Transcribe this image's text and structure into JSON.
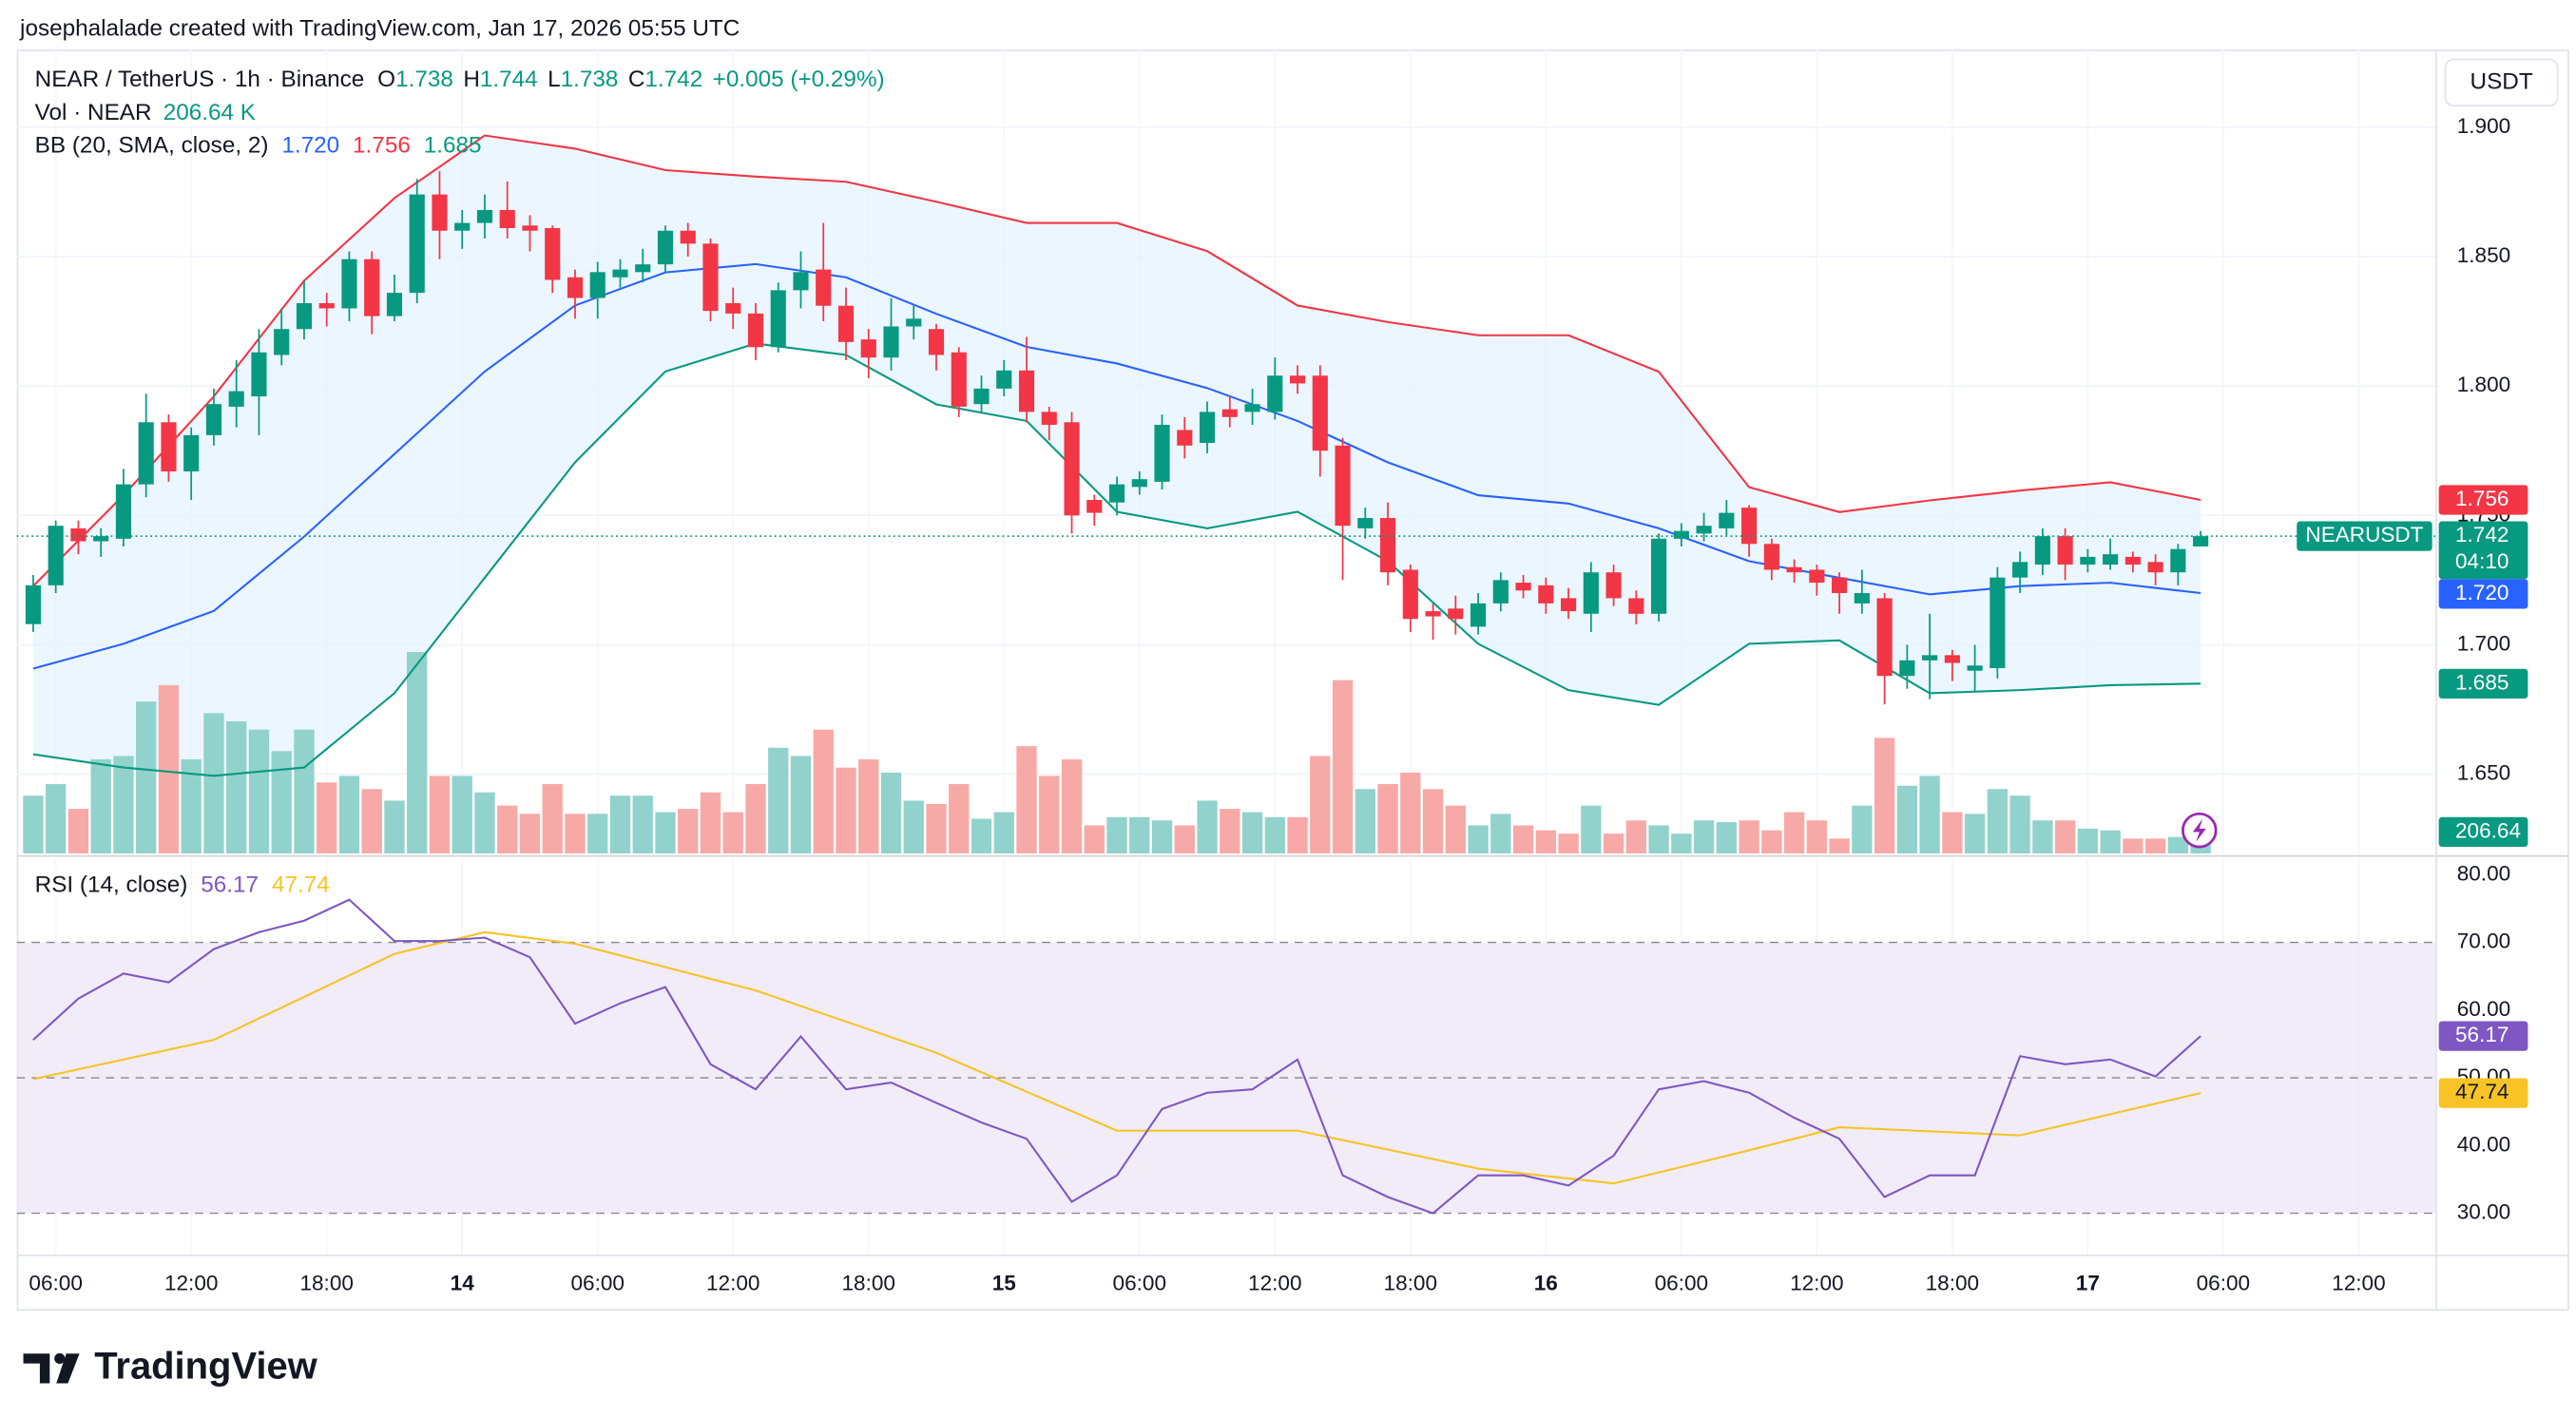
{
  "header": {
    "credit": "josephalalade created with TradingView.com, Jan 17, 2026 05:55 UTC",
    "brand": "TradingView"
  },
  "chart_data": {
    "type": "candlestick",
    "title": "NEAR / TetherUS · 1h · Binance",
    "currency": "USDT",
    "symbol": "NEARUSDT",
    "countdown": "04:10",
    "legend": {
      "o_label": "O",
      "o": "1.738",
      "h_label": "H",
      "h": "1.744",
      "l_label": "L",
      "l": "1.738",
      "c_label": "C",
      "c": "1.742",
      "change": "+0.005 (+0.29%)",
      "volume_title": "Vol · NEAR",
      "volume": "206.64 K",
      "bb_title": "BB (20, SMA, close, 2)",
      "bb_basis": "1.720",
      "bb_upper": "1.756",
      "bb_lower": "1.685",
      "rsi_title": "RSI (14, close)",
      "rsi": "56.17",
      "rsi_ma": "47.74"
    },
    "up_color": "#089981",
    "down_color": "#f23645",
    "up_volume_color": "#92d2cc",
    "down_volume_color": "#f7a9a7",
    "open": [
      1.708,
      1.723,
      1.745,
      1.74,
      1.741,
      1.762,
      1.786,
      1.767,
      1.781,
      1.792,
      1.796,
      1.812,
      1.822,
      1.832,
      1.83,
      1.849,
      1.827,
      1.836,
      1.874,
      1.86,
      1.863,
      1.868,
      1.862,
      1.861,
      1.842,
      1.834,
      1.842,
      1.844,
      1.847,
      1.86,
      1.855,
      1.832,
      1.828,
      1.815,
      1.837,
      1.845,
      1.831,
      1.818,
      1.811,
      1.823,
      1.822,
      1.813,
      1.793,
      1.799,
      1.806,
      1.79,
      1.786,
      1.756,
      1.755,
      1.761,
      1.763,
      1.783,
      1.778,
      1.791,
      1.79,
      1.79,
      1.804,
      1.804,
      1.777,
      1.745,
      1.749,
      1.729,
      1.713,
      1.714,
      1.707,
      1.716,
      1.724,
      1.723,
      1.718,
      1.712,
      1.728,
      1.718,
      1.712,
      1.741,
      1.743,
      1.745,
      1.753,
      1.739,
      1.73,
      1.729,
      1.726,
      1.716,
      1.718,
      1.688,
      1.694,
      1.696,
      1.69,
      1.691,
      1.726,
      1.731,
      1.742,
      1.731,
      1.731,
      1.734,
      1.732,
      1.728,
      1.738
    ],
    "high": [
      1.727,
      1.748,
      1.748,
      1.745,
      1.768,
      1.797,
      1.789,
      1.784,
      1.799,
      1.81,
      1.822,
      1.83,
      1.841,
      1.836,
      1.852,
      1.852,
      1.843,
      1.88,
      1.883,
      1.868,
      1.874,
      1.879,
      1.866,
      1.862,
      1.845,
      1.848,
      1.849,
      1.853,
      1.862,
      1.863,
      1.857,
      1.838,
      1.832,
      1.84,
      1.852,
      1.863,
      1.838,
      1.822,
      1.834,
      1.831,
      1.824,
      1.815,
      1.804,
      1.81,
      1.819,
      1.792,
      1.79,
      1.758,
      1.765,
      1.767,
      1.789,
      1.788,
      1.794,
      1.796,
      1.799,
      1.811,
      1.808,
      1.808,
      1.78,
      1.753,
      1.755,
      1.731,
      1.716,
      1.719,
      1.72,
      1.728,
      1.727,
      1.726,
      1.722,
      1.732,
      1.731,
      1.721,
      1.743,
      1.747,
      1.751,
      1.756,
      1.754,
      1.741,
      1.733,
      1.731,
      1.728,
      1.729,
      1.72,
      1.7,
      1.712,
      1.698,
      1.7,
      1.73,
      1.736,
      1.745,
      1.745,
      1.737,
      1.741,
      1.736,
      1.735,
      1.739,
      1.744
    ],
    "low": [
      1.705,
      1.72,
      1.735,
      1.734,
      1.738,
      1.757,
      1.763,
      1.756,
      1.777,
      1.784,
      1.781,
      1.808,
      1.818,
      1.823,
      1.825,
      1.82,
      1.825,
      1.832,
      1.849,
      1.853,
      1.857,
      1.857,
      1.852,
      1.836,
      1.826,
      1.826,
      1.838,
      1.84,
      1.844,
      1.85,
      1.825,
      1.822,
      1.81,
      1.813,
      1.83,
      1.825,
      1.81,
      1.803,
      1.806,
      1.818,
      1.806,
      1.788,
      1.79,
      1.796,
      1.786,
      1.779,
      1.743,
      1.746,
      1.75,
      1.758,
      1.76,
      1.772,
      1.774,
      1.784,
      1.785,
      1.787,
      1.797,
      1.765,
      1.725,
      1.741,
      1.723,
      1.705,
      1.702,
      1.704,
      1.704,
      1.713,
      1.718,
      1.712,
      1.71,
      1.705,
      1.715,
      1.708,
      1.709,
      1.738,
      1.74,
      1.742,
      1.734,
      1.725,
      1.724,
      1.719,
      1.712,
      1.712,
      1.677,
      1.683,
      1.679,
      1.686,
      1.682,
      1.687,
      1.72,
      1.727,
      1.725,
      1.728,
      1.729,
      1.728,
      1.723,
      1.723,
      1.738
    ],
    "close": [
      1.723,
      1.746,
      1.74,
      1.742,
      1.762,
      1.786,
      1.767,
      1.781,
      1.793,
      1.798,
      1.813,
      1.822,
      1.832,
      1.83,
      1.849,
      1.827,
      1.836,
      1.874,
      1.86,
      1.863,
      1.868,
      1.861,
      1.86,
      1.841,
      1.834,
      1.844,
      1.845,
      1.847,
      1.86,
      1.855,
      1.829,
      1.828,
      1.815,
      1.837,
      1.844,
      1.831,
      1.817,
      1.811,
      1.823,
      1.826,
      1.812,
      1.792,
      1.799,
      1.806,
      1.79,
      1.785,
      1.75,
      1.751,
      1.762,
      1.764,
      1.785,
      1.777,
      1.79,
      1.788,
      1.793,
      1.804,
      1.801,
      1.775,
      1.746,
      1.749,
      1.728,
      1.71,
      1.711,
      1.71,
      1.716,
      1.725,
      1.721,
      1.716,
      1.713,
      1.728,
      1.718,
      1.712,
      1.741,
      1.744,
      1.746,
      1.751,
      1.739,
      1.729,
      1.728,
      1.724,
      1.72,
      1.72,
      1.688,
      1.694,
      1.696,
      1.693,
      1.692,
      1.726,
      1.732,
      1.742,
      1.731,
      1.734,
      1.735,
      1.731,
      1.728,
      1.737,
      1.742
    ],
    "volume": [
      910,
      1092,
      702,
      1482,
      1534,
      2392,
      2652,
      1482,
      2210,
      2080,
      1950,
      1612,
      1950,
      1118,
      1222,
      1014,
      832,
      3172,
      1222,
      1222,
      962,
      754,
      624,
      1092,
      624,
      624,
      910,
      910,
      650,
      702,
      962,
      650,
      1092,
      1664,
      1534,
      1950,
      1352,
      1482,
      1274,
      832,
      780,
      1092,
      546,
      650,
      1690,
      1222,
      1482,
      442,
      572,
      572,
      520,
      442,
      832,
      702,
      650,
      572,
      572,
      1534,
      2730,
      1014,
      1092,
      1274,
      1014,
      754,
      442,
      624,
      442,
      364,
      312,
      754,
      312,
      520,
      442,
      312,
      520,
      494,
      520,
      364,
      650,
      520,
      234,
      754,
      1820,
      1066,
      1222,
      650,
      624,
      1014,
      910,
      520,
      520,
      390,
      364,
      234,
      234,
      260,
      206.64
    ],
    "bb": {
      "x": [
        0,
        4,
        8,
        12,
        16,
        20,
        24,
        28,
        32,
        36,
        40,
        44,
        48,
        52,
        56,
        60,
        64,
        68,
        72,
        76,
        80,
        84,
        88,
        92,
        96
      ],
      "upper": [
        1.7227,
        1.7578,
        1.796,
        1.8407,
        1.8726,
        1.8968,
        1.8917,
        1.8834,
        1.8809,
        1.8789,
        1.8712,
        1.863,
        1.863,
        1.8521,
        1.8311,
        1.8247,
        1.8196,
        1.8196,
        1.8055,
        1.7609,
        1.7513,
        1.7558,
        1.7596,
        1.7628,
        1.756
      ],
      "basis": [
        1.6908,
        1.7004,
        1.7131,
        1.7418,
        1.7737,
        1.8056,
        1.8311,
        1.8439,
        1.8471,
        1.842,
        1.8279,
        1.8151,
        1.8087,
        1.7992,
        1.7865,
        1.7705,
        1.7578,
        1.7546,
        1.745,
        1.7323,
        1.7259,
        1.7195,
        1.7227,
        1.724,
        1.72
      ],
      "lower": [
        1.6577,
        1.6526,
        1.6494,
        1.6526,
        1.6813,
        1.7259,
        1.7705,
        1.8056,
        1.8164,
        1.812,
        1.7929,
        1.7865,
        1.7514,
        1.745,
        1.7514,
        1.7323,
        1.7004,
        1.6825,
        1.6768,
        1.7004,
        1.7017,
        1.6813,
        1.6825,
        1.6844,
        1.685
      ],
      "upper_color": "#f23645",
      "basis_color": "#2962ff",
      "lower_color": "#089981",
      "fill": "#e3f2fd"
    },
    "ylim": [
      1.6194,
      1.93
    ],
    "yticks": [
      {
        "value": 1.65,
        "label": "1.650"
      },
      {
        "value": 1.7,
        "label": "1.700"
      },
      {
        "value": 1.75,
        "label": "1.750"
      },
      {
        "value": 1.8,
        "label": "1.800"
      },
      {
        "value": 1.85,
        "label": "1.850"
      },
      {
        "value": 1.9,
        "label": "1.900"
      }
    ],
    "xlim": [
      -0.73,
      106.4
    ],
    "xticks": [
      {
        "value": 1,
        "label": "06:00"
      },
      {
        "value": 7,
        "label": "12:00"
      },
      {
        "value": 13,
        "label": "18:00"
      },
      {
        "value": 19,
        "label": "14"
      },
      {
        "value": 25,
        "label": "06:00"
      },
      {
        "value": 31,
        "label": "12:00"
      },
      {
        "value": 37,
        "label": "18:00"
      },
      {
        "value": 43,
        "label": "15"
      },
      {
        "value": 49,
        "label": "06:00"
      },
      {
        "value": 55,
        "label": "12:00"
      },
      {
        "value": 61,
        "label": "18:00"
      },
      {
        "value": 67,
        "label": "16"
      },
      {
        "value": 73,
        "label": "06:00"
      },
      {
        "value": 79,
        "label": "12:00"
      },
      {
        "value": 85,
        "label": "18:00"
      },
      {
        "value": 91,
        "label": "17"
      },
      {
        "value": 97,
        "label": "06:00"
      },
      {
        "value": 103,
        "label": "12:00"
      }
    ],
    "grid": true,
    "rsi": {
      "x": [
        0,
        2,
        4,
        6,
        8,
        10,
        12,
        14,
        16,
        18,
        20,
        22,
        24,
        26,
        28,
        30,
        32,
        34,
        36,
        38,
        40,
        42,
        44,
        46,
        48,
        50,
        52,
        54,
        56,
        58,
        60,
        62,
        64,
        66,
        68,
        70,
        72,
        74,
        76,
        78,
        80,
        82,
        84,
        86,
        88,
        90,
        92,
        94,
        96
      ],
      "values": [
        55.6,
        61.7,
        65.4,
        64.1,
        69.0,
        71.5,
        73.2,
        76.3,
        70.2,
        70.2,
        70.7,
        67.8,
        58.0,
        61.0,
        63.4,
        52.0,
        48.3,
        56.1,
        48.3,
        49.3,
        46.3,
        43.4,
        41.0,
        31.7,
        35.6,
        45.4,
        47.8,
        48.3,
        52.7,
        35.6,
        32.4,
        30.0,
        35.6,
        35.6,
        34.1,
        38.5,
        48.3,
        49.5,
        47.8,
        44.1,
        41.0,
        32.4,
        35.6,
        35.6,
        53.2,
        52.0,
        52.7,
        50.2,
        56.17
      ],
      "color": "#7e57c2",
      "ma_x": [
        0,
        8,
        16,
        20,
        24,
        32,
        40,
        48,
        56,
        64,
        70,
        76,
        80,
        88,
        96
      ],
      "ma_values": [
        49.8,
        55.6,
        68.3,
        71.5,
        69.8,
        62.9,
        53.7,
        42.2,
        42.2,
        36.6,
        34.4,
        39.3,
        42.7,
        41.5,
        47.74
      ],
      "ma_color": "#f7c325",
      "band": [
        30,
        70
      ],
      "levels": [
        70,
        50,
        30
      ],
      "band_color": "#ede7f6",
      "ylim": [
        23.9,
        82.4
      ],
      "yticks": [
        {
          "value": 30,
          "label": "30.00"
        },
        {
          "value": 40,
          "label": "40.00"
        },
        {
          "value": 50,
          "label": "50.00"
        },
        {
          "value": 60,
          "label": "60.00"
        },
        {
          "value": 70,
          "label": "70.00"
        },
        {
          "value": 80,
          "label": "80.00"
        }
      ]
    }
  }
}
